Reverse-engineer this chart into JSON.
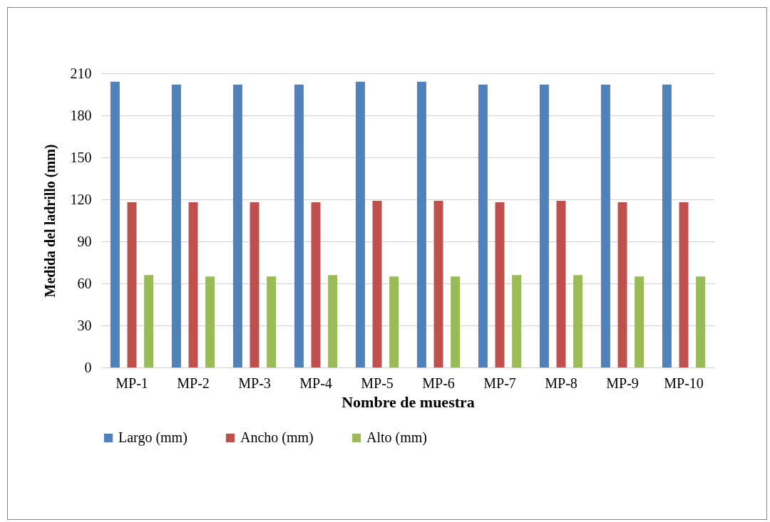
{
  "chart_data": {
    "type": "bar",
    "xlabel": "Nombre de muestra",
    "ylabel": "Medida del ladrillo  (mm)",
    "categories": [
      "MP-1",
      "MP-2",
      "MP-3",
      "MP-4",
      "MP-5",
      "MP-6",
      "MP-7",
      "MP-8",
      "MP-9",
      "MP-10"
    ],
    "series": [
      {
        "name": "Largo (mm)",
        "color": "#4f81bd",
        "values": [
          204,
          202,
          202,
          202,
          204,
          204,
          202,
          202,
          202,
          202
        ]
      },
      {
        "name": "Ancho (mm)",
        "color": "#c0504d",
        "values": [
          118,
          118,
          118,
          118,
          119,
          119,
          118,
          119,
          118,
          118
        ]
      },
      {
        "name": "Alto (mm)",
        "color": "#9bbb59",
        "values": [
          66,
          65,
          65,
          66,
          65,
          65,
          66,
          66,
          65,
          65
        ]
      }
    ],
    "ylim": [
      0,
      210
    ],
    "yticks": [
      0,
      30,
      60,
      90,
      120,
      150,
      180,
      210
    ],
    "grid": "y",
    "legend": "bottom"
  }
}
